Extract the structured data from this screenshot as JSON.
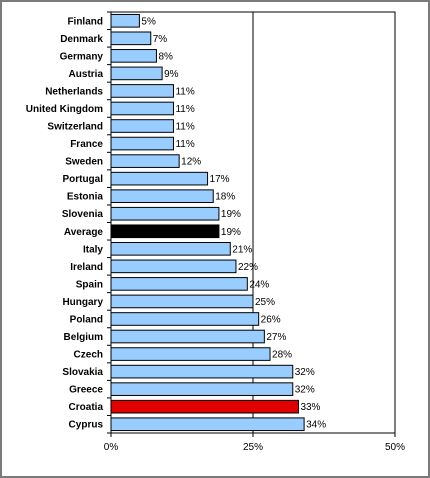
{
  "chart_data": {
    "type": "bar",
    "orientation": "horizontal",
    "categories": [
      "Finland",
      "Denmark",
      "Germany",
      "Austria",
      "Netherlands",
      "United Kingdom",
      "Switzerland",
      "France",
      "Sweden",
      "Portugal",
      "Estonia",
      "Slovenia",
      "Average",
      "Italy",
      "Ireland",
      "Spain",
      "Hungary",
      "Poland",
      "Belgium",
      "Czech",
      "Slovakia",
      "Greece",
      "Croatia",
      "Cyprus"
    ],
    "values": [
      5,
      7,
      8,
      9,
      11,
      11,
      11,
      11,
      12,
      17,
      18,
      19,
      19,
      21,
      22,
      24,
      25,
      26,
      27,
      28,
      32,
      32,
      33,
      34
    ],
    "value_labels": [
      "5%",
      "7%",
      "8%",
      "9%",
      "11%",
      "11%",
      "11%",
      "11%",
      "12%",
      "17%",
      "18%",
      "19%",
      "19%",
      "21%",
      "22%",
      "24%",
      "25%",
      "26%",
      "27%",
      "28%",
      "32%",
      "32%",
      "33%",
      "34%"
    ],
    "xlim": [
      0,
      50
    ],
    "xticks": [
      0,
      25,
      50
    ],
    "xtick_labels": [
      "0%",
      "25%",
      "50%"
    ],
    "gridlines": [
      25
    ],
    "grid": true,
    "legend": "none",
    "colors": {
      "default": "#99ccff",
      "highlights": {
        "Average": "#000000",
        "Croatia": "#e00000"
      },
      "border": "#000000"
    },
    "title": "",
    "xlabel": "",
    "ylabel": ""
  }
}
